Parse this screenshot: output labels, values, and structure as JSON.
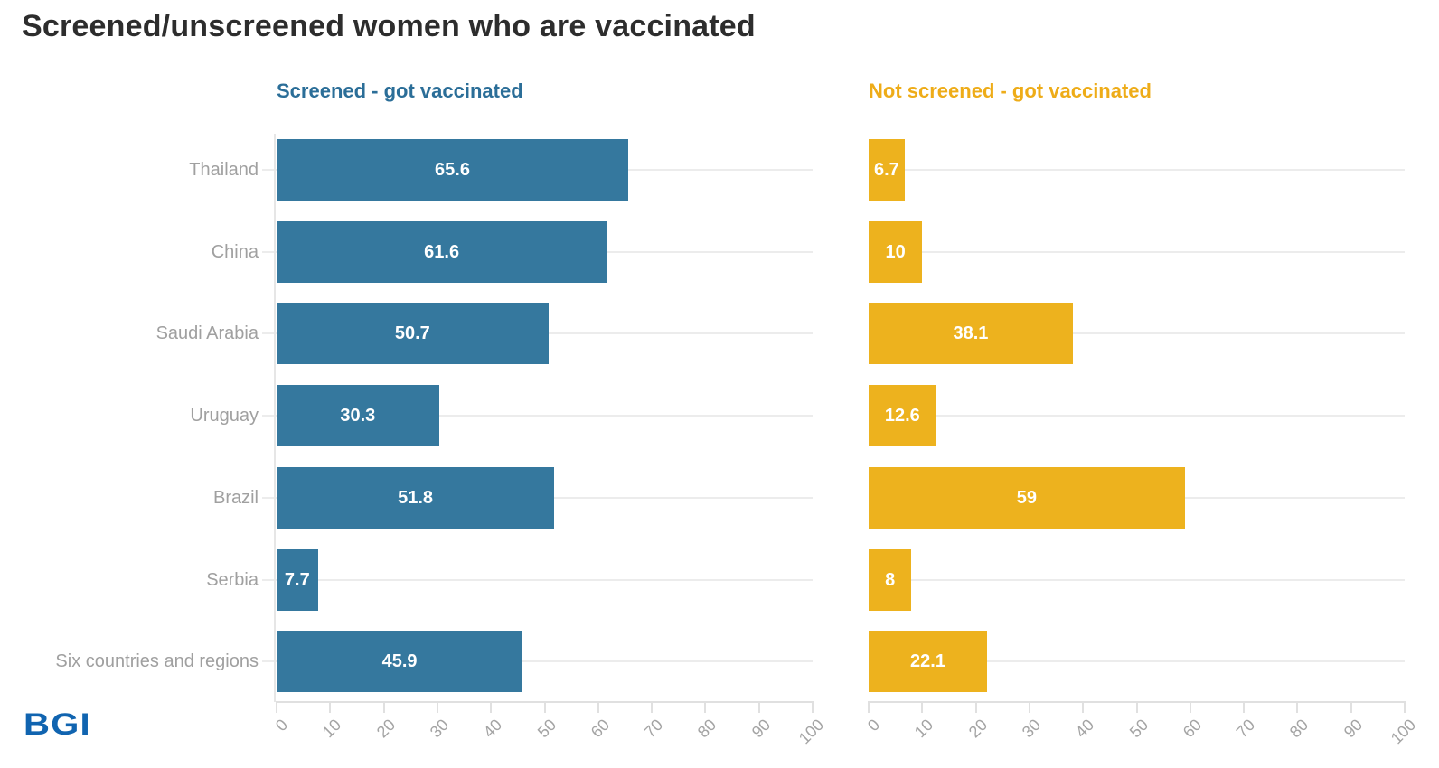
{
  "header": {
    "title": "Screened/unscreened women who are vaccinated"
  },
  "logo": {
    "text": "BGI",
    "color": "#1064B0"
  },
  "chart_data": {
    "type": "bar",
    "orientation": "horizontal",
    "title": "Screened/unscreened women who are vaccinated",
    "categories": [
      "Thailand",
      "China",
      "Saudi Arabia",
      "Uruguay",
      "Brazil",
      "Serbia",
      "Six countries and regions"
    ],
    "series": [
      {
        "name": "Screened - got vaccinated",
        "color": "#35789E",
        "title_color": "#2B6E98",
        "values": [
          65.6,
          61.6,
          50.7,
          30.3,
          51.8,
          7.7,
          45.9
        ]
      },
      {
        "name": "Not screened - got vaccinated",
        "color": "#EDB21E",
        "title_color": "#EEAC18",
        "values": [
          6.7,
          10,
          38.1,
          12.6,
          59,
          8,
          22.1
        ]
      }
    ],
    "xlim": [
      0,
      100
    ],
    "x_ticks": [
      0,
      10,
      20,
      30,
      40,
      50,
      60,
      70,
      80,
      90,
      100
    ],
    "grid": "light gray horizontal line at each category row",
    "value_labels": "white bold numbers centered inside bars",
    "legend_position": "colored panel subtitles above each chart",
    "axis_label_style": "rotated -45 degrees, gray",
    "colors": {
      "grid": "#ECECEC",
      "axis": "#E0E0E0",
      "category_labels": "#A0A0A0",
      "tick_labels": "#A4A4A4",
      "title": "#2D2D2D",
      "value_label": "#FFFFFF"
    }
  }
}
